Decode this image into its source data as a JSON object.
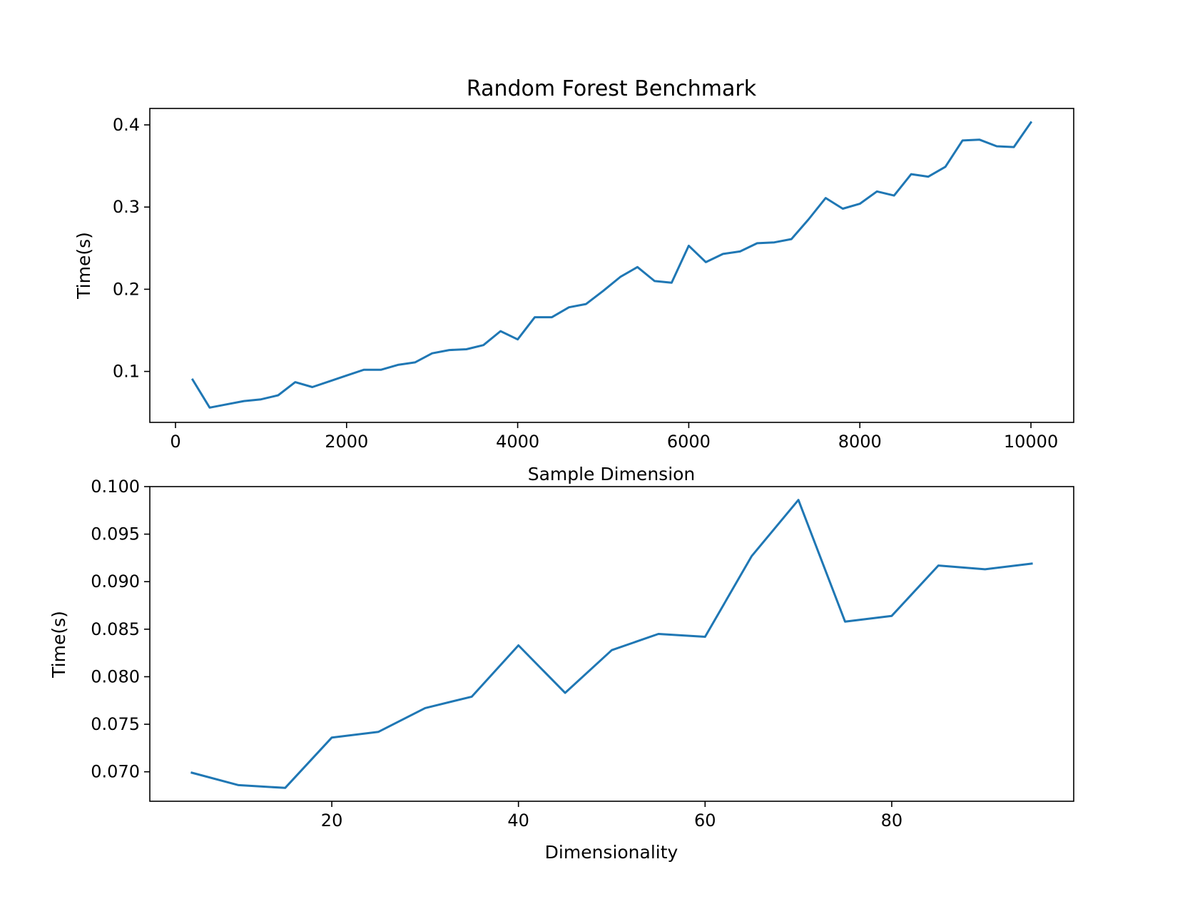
{
  "chart_data": [
    {
      "type": "line",
      "title": "Random Forest Benchmark",
      "xlabel": "Sample Dimension",
      "ylabel": "Time(s)",
      "xlim": [
        -300,
        10500
      ],
      "ylim": [
        0.038,
        0.42
      ],
      "xticks": [
        0,
        2000,
        4000,
        6000,
        8000,
        10000
      ],
      "xtick_labels": [
        "0",
        "2000",
        "4000",
        "6000",
        "8000",
        "10000"
      ],
      "yticks": [
        0.1,
        0.2,
        0.3,
        0.4
      ],
      "ytick_labels": [
        "0.1",
        "0.2",
        "0.3",
        "0.4"
      ],
      "grid": false,
      "color": "#1f77b4",
      "x": [
        200,
        400,
        600,
        800,
        1000,
        1200,
        1400,
        1600,
        1800,
        2000,
        2200,
        2400,
        2600,
        2800,
        3000,
        3200,
        3400,
        3600,
        3800,
        4000,
        4200,
        4400,
        4600,
        4800,
        5000,
        5200,
        5400,
        5600,
        5800,
        6000,
        6200,
        6400,
        6600,
        6800,
        7000,
        7200,
        7400,
        7600,
        7800,
        8000,
        8200,
        8400,
        8600,
        8800,
        9000,
        9200,
        9400,
        9600,
        9800,
        10000
      ],
      "y": [
        0.09,
        0.056,
        0.06,
        0.064,
        0.066,
        0.071,
        0.087,
        0.081,
        0.088,
        0.095,
        0.102,
        0.102,
        0.108,
        0.111,
        0.122,
        0.126,
        0.127,
        0.132,
        0.149,
        0.139,
        0.166,
        0.166,
        0.178,
        0.182,
        0.198,
        0.215,
        0.227,
        0.21,
        0.208,
        0.253,
        0.233,
        0.243,
        0.246,
        0.256,
        0.257,
        0.261,
        0.285,
        0.311,
        0.298,
        0.304,
        0.319,
        0.314,
        0.34,
        0.337,
        0.349,
        0.381,
        0.382,
        0.374,
        0.373,
        0.403
      ]
    },
    {
      "type": "line",
      "title": "",
      "xlabel": "Dimensionality",
      "ylabel": "Time(s)",
      "xlim": [
        0.5,
        99.5
      ],
      "ylim": [
        0.0669,
        0.1
      ],
      "xticks": [
        20,
        40,
        60,
        80
      ],
      "xtick_labels": [
        "20",
        "40",
        "60",
        "80"
      ],
      "yticks": [
        0.07,
        0.075,
        0.08,
        0.085,
        0.09,
        0.095,
        0.1
      ],
      "ytick_labels": [
        "0.070",
        "0.075",
        "0.080",
        "0.085",
        "0.090",
        "0.095",
        "0.100"
      ],
      "grid": false,
      "color": "#1f77b4",
      "x": [
        5,
        10,
        15,
        20,
        25,
        30,
        35,
        40,
        45,
        50,
        55,
        60,
        65,
        70,
        75,
        80,
        85,
        90,
        95
      ],
      "y": [
        0.0699,
        0.0686,
        0.0683,
        0.0736,
        0.0742,
        0.0767,
        0.0779,
        0.0833,
        0.0783,
        0.0828,
        0.0845,
        0.0842,
        0.0927,
        0.0986,
        0.0858,
        0.0864,
        0.0917,
        0.0913,
        0.0919
      ]
    }
  ]
}
